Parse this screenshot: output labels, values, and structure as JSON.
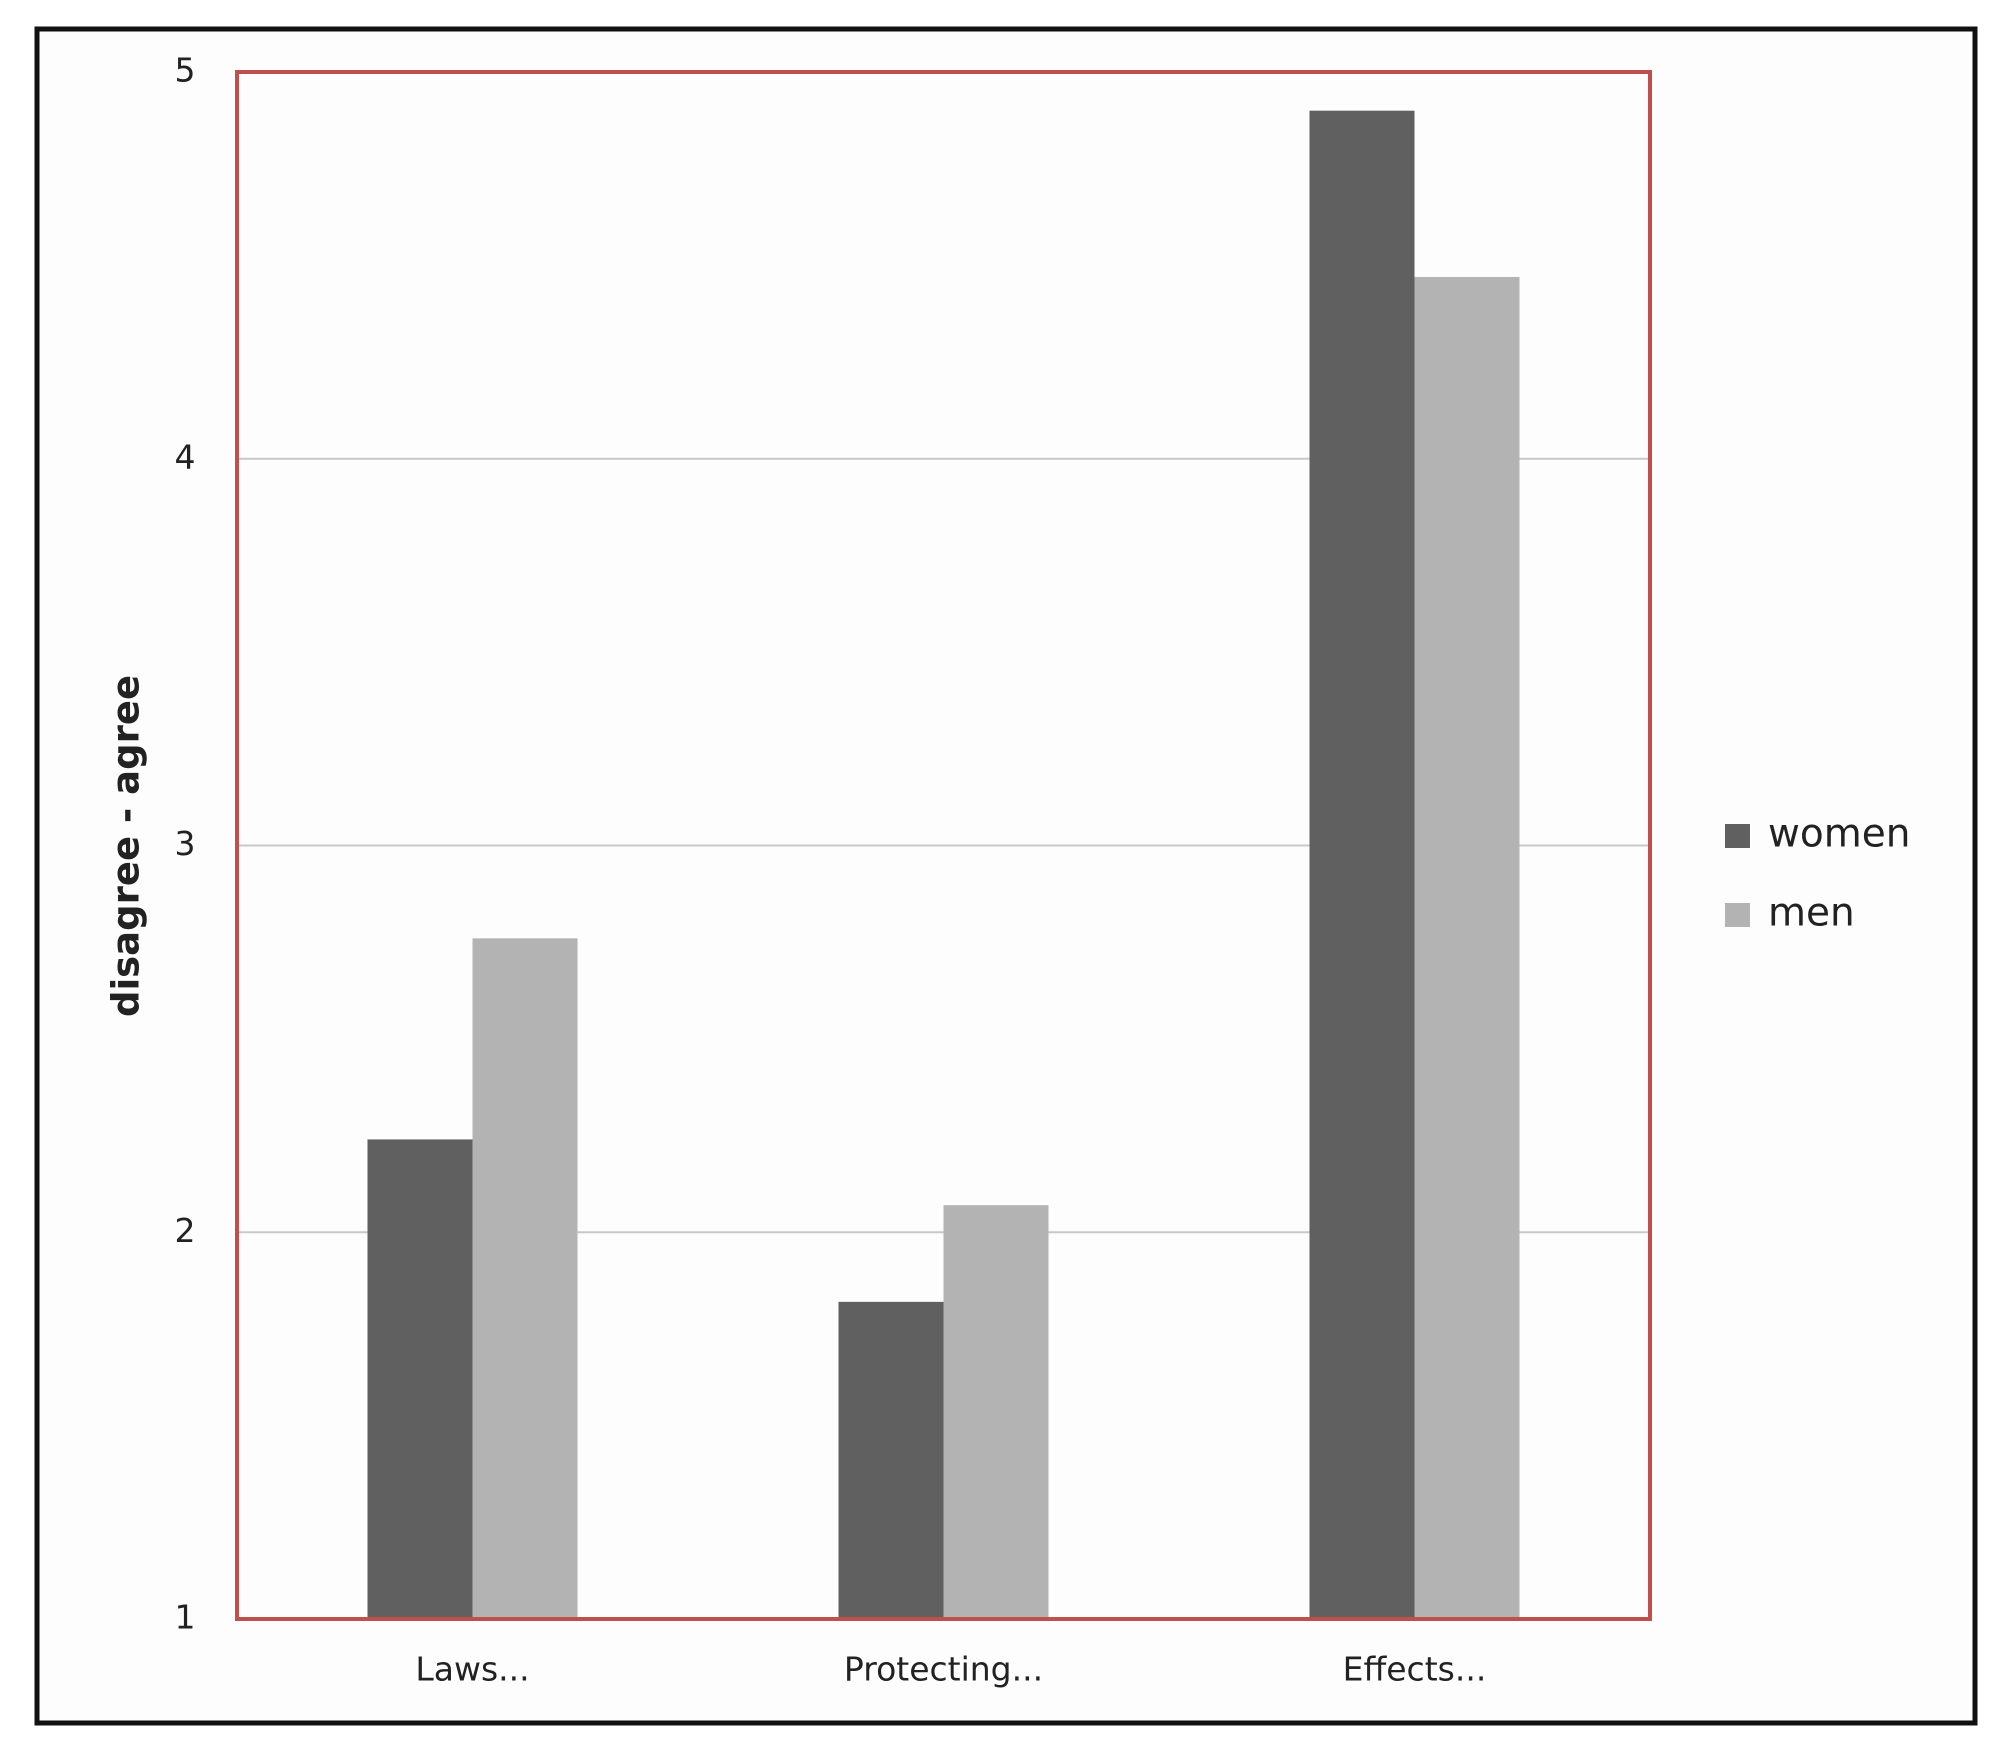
{
  "chart_data": {
    "type": "bar",
    "y_label": "disagree - agree",
    "categories": [
      "Laws...",
      "Protecting...",
      "Effects..."
    ],
    "series": [
      {
        "name": "women",
        "color": "#606060",
        "values": [
          2.24,
          1.82,
          4.9
        ]
      },
      {
        "name": "men",
        "color": "#b3b3b3",
        "values": [
          2.76,
          2.07,
          4.47
        ]
      }
    ],
    "ylim": [
      1,
      5
    ],
    "yticks": [
      1,
      2,
      3,
      4,
      5
    ],
    "grid": true,
    "legend": "right"
  }
}
